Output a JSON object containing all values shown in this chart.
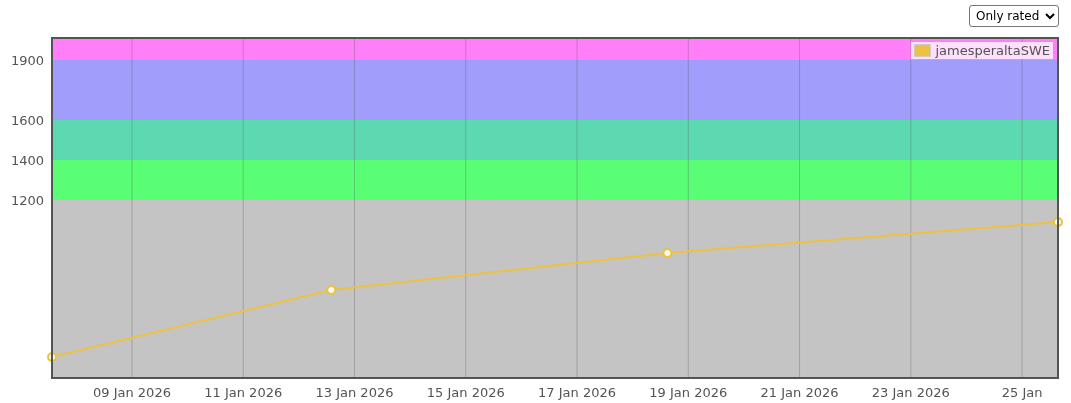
{
  "chart_data": {
    "type": "line",
    "x": [
      "2026-01-07T13:30",
      "2026-01-12T14:00",
      "2026-01-18T15:00",
      "2026-01-25T15:30"
    ],
    "series": [
      {
        "name": "jamesperaltaSWE",
        "color": "#edc240",
        "values": [
          415,
          750,
          935,
          1090
        ]
      }
    ],
    "xlim": [
      "2026-01-07T13:30",
      "2026-01-25T15:30"
    ],
    "xticks": [
      {
        "value": "2026-01-09",
        "label": "09 Jan 2026"
      },
      {
        "value": "2026-01-11",
        "label": "11 Jan 2026"
      },
      {
        "value": "2026-01-13",
        "label": "13 Jan 2026"
      },
      {
        "value": "2026-01-15",
        "label": "15 Jan 2026"
      },
      {
        "value": "2026-01-17",
        "label": "17 Jan 2026"
      },
      {
        "value": "2026-01-19",
        "label": "19 Jan 2026"
      },
      {
        "value": "2026-01-21",
        "label": "21 Jan 2026"
      },
      {
        "value": "2026-01-23",
        "label": "23 Jan 2026"
      },
      {
        "value": "2026-01-25",
        "label": "25 Jan"
      }
    ],
    "ylim": [
      310,
      2010
    ],
    "yticks": [
      1200,
      1400,
      1600,
      1900
    ],
    "bands": [
      {
        "axis": "y",
        "from": 310,
        "to": 1200,
        "color": "#c4c4c4"
      },
      {
        "axis": "y",
        "from": 1200,
        "to": 1400,
        "color": "#5afe75"
      },
      {
        "axis": "y",
        "from": 1400,
        "to": 1600,
        "color": "#5dd9b1"
      },
      {
        "axis": "y",
        "from": 1600,
        "to": 1900,
        "color": "#a09dfb"
      },
      {
        "axis": "y",
        "from": 1900,
        "to": 2010,
        "color": "#ff7ff9"
      }
    ],
    "annotations": [
      "Only rated"
    ],
    "grid": "x",
    "legend": "top right",
    "marker": "circle",
    "line_style": "solid"
  }
}
